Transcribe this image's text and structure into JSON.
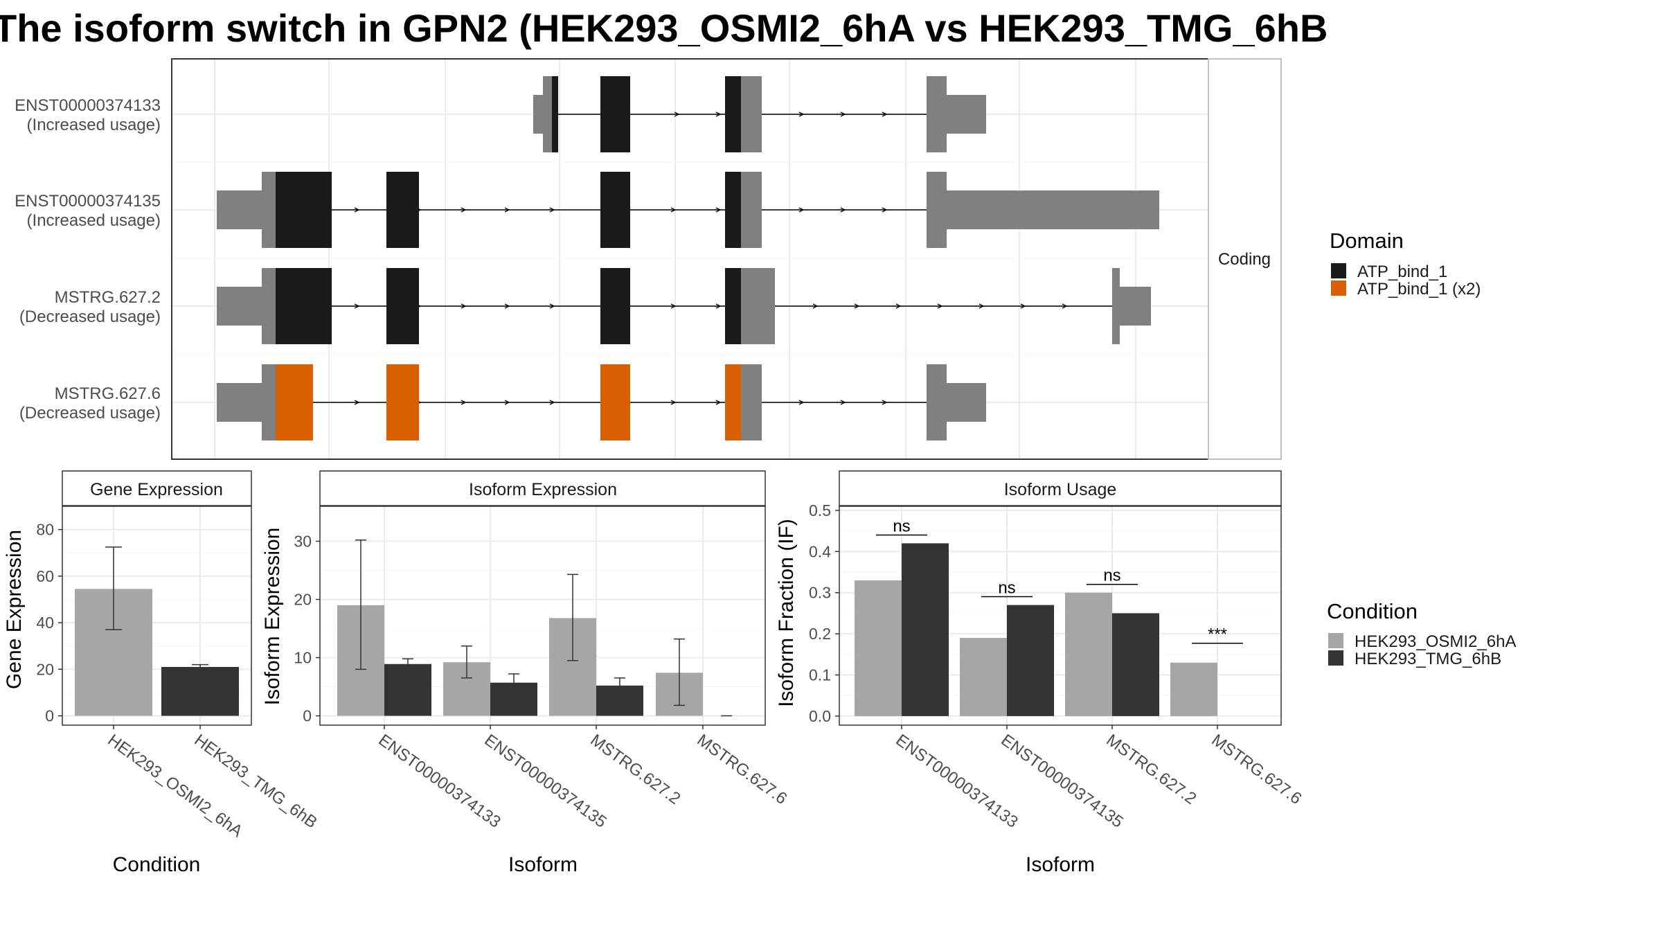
{
  "title": "The isoform switch in GPN2 (HEK293_OSMI2_6hA vs HEK293_TMG_6hB",
  "colors": {
    "utr": "#808080",
    "domain_atp": "#1a1a1a",
    "domain_atp_x2": "#d95f02",
    "cond_a": "#a6a6a6",
    "cond_b": "#333333"
  },
  "chart_data": [
    {
      "type": "gene-structure",
      "facet_label": "Coding",
      "transcripts": [
        {
          "id": "ENST00000374133",
          "status": "(Increased usage)"
        },
        {
          "id": "ENST00000374135",
          "status": "(Increased usage)"
        },
        {
          "id": "MSTRG.627.2",
          "status": "(Decreased usage)"
        },
        {
          "id": "MSTRG.627.6",
          "status": "(Decreased usage)"
        }
      ],
      "legend": {
        "title": "Domain",
        "entries": [
          {
            "label": "ATP_bind_1",
            "color": "#1a1a1a"
          },
          {
            "label": "ATP_bind_1 (x2)",
            "color": "#d95f02"
          }
        ]
      }
    },
    {
      "type": "bar",
      "panel_title": "Gene Expression",
      "xlabel": "Condition",
      "ylabel": "Gene Expression",
      "ylim": [
        0,
        90
      ],
      "yticks": [
        "0",
        "20",
        "40",
        "60",
        "80"
      ],
      "categories": [
        "HEK293_OSMI2_6hA",
        "HEK293_TMG_6hB"
      ],
      "values": [
        54.5,
        21
      ],
      "error": [
        [
          37,
          72.5
        ],
        [
          20,
          22
        ]
      ]
    },
    {
      "type": "bar",
      "panel_title": "Isoform Expression",
      "xlabel": "Isoform",
      "ylabel": "Isoform Expression",
      "ylim": [
        0,
        36
      ],
      "yticks": [
        "0",
        "10",
        "20",
        "30"
      ],
      "categories": [
        "ENST00000374133",
        "ENST00000374135",
        "MSTRG.627.2",
        "MSTRG.627.6"
      ],
      "series": [
        {
          "values": [
            19,
            9.2,
            16.8,
            7.4
          ],
          "error_low": [
            8,
            6.5,
            9.5,
            1.8
          ],
          "error_high": [
            30.2,
            12,
            24.3,
            13.2
          ]
        },
        {
          "values": [
            8.9,
            5.7,
            5.2,
            0
          ],
          "error_low": [
            8,
            4.3,
            4,
            0
          ],
          "error_high": [
            9.8,
            7.2,
            6.5,
            0
          ]
        }
      ]
    },
    {
      "type": "bar",
      "panel_title": "Isoform Usage",
      "xlabel": "Isoform",
      "ylabel": "Isoform Fraction (IF)",
      "ylim": [
        -0.01,
        0.51
      ],
      "yticks": [
        "0.0",
        "0.1",
        "0.2",
        "0.3",
        "0.4",
        "0.5"
      ],
      "categories": [
        "ENST00000374133",
        "ENST00000374135",
        "MSTRG.627.2",
        "MSTRG.627.6"
      ],
      "series": [
        {
          "values": [
            0.33,
            0.19,
            0.3,
            0.13
          ]
        },
        {
          "values": [
            0.42,
            0.27,
            0.25,
            0
          ]
        }
      ],
      "significance": [
        "ns",
        "ns",
        "ns",
        "***"
      ],
      "legend": {
        "title": "Condition",
        "entries": [
          {
            "label": "HEK293_OSMI2_6hA",
            "color": "#a6a6a6"
          },
          {
            "label": "HEK293_TMG_6hB",
            "color": "#333333"
          }
        ]
      }
    }
  ]
}
